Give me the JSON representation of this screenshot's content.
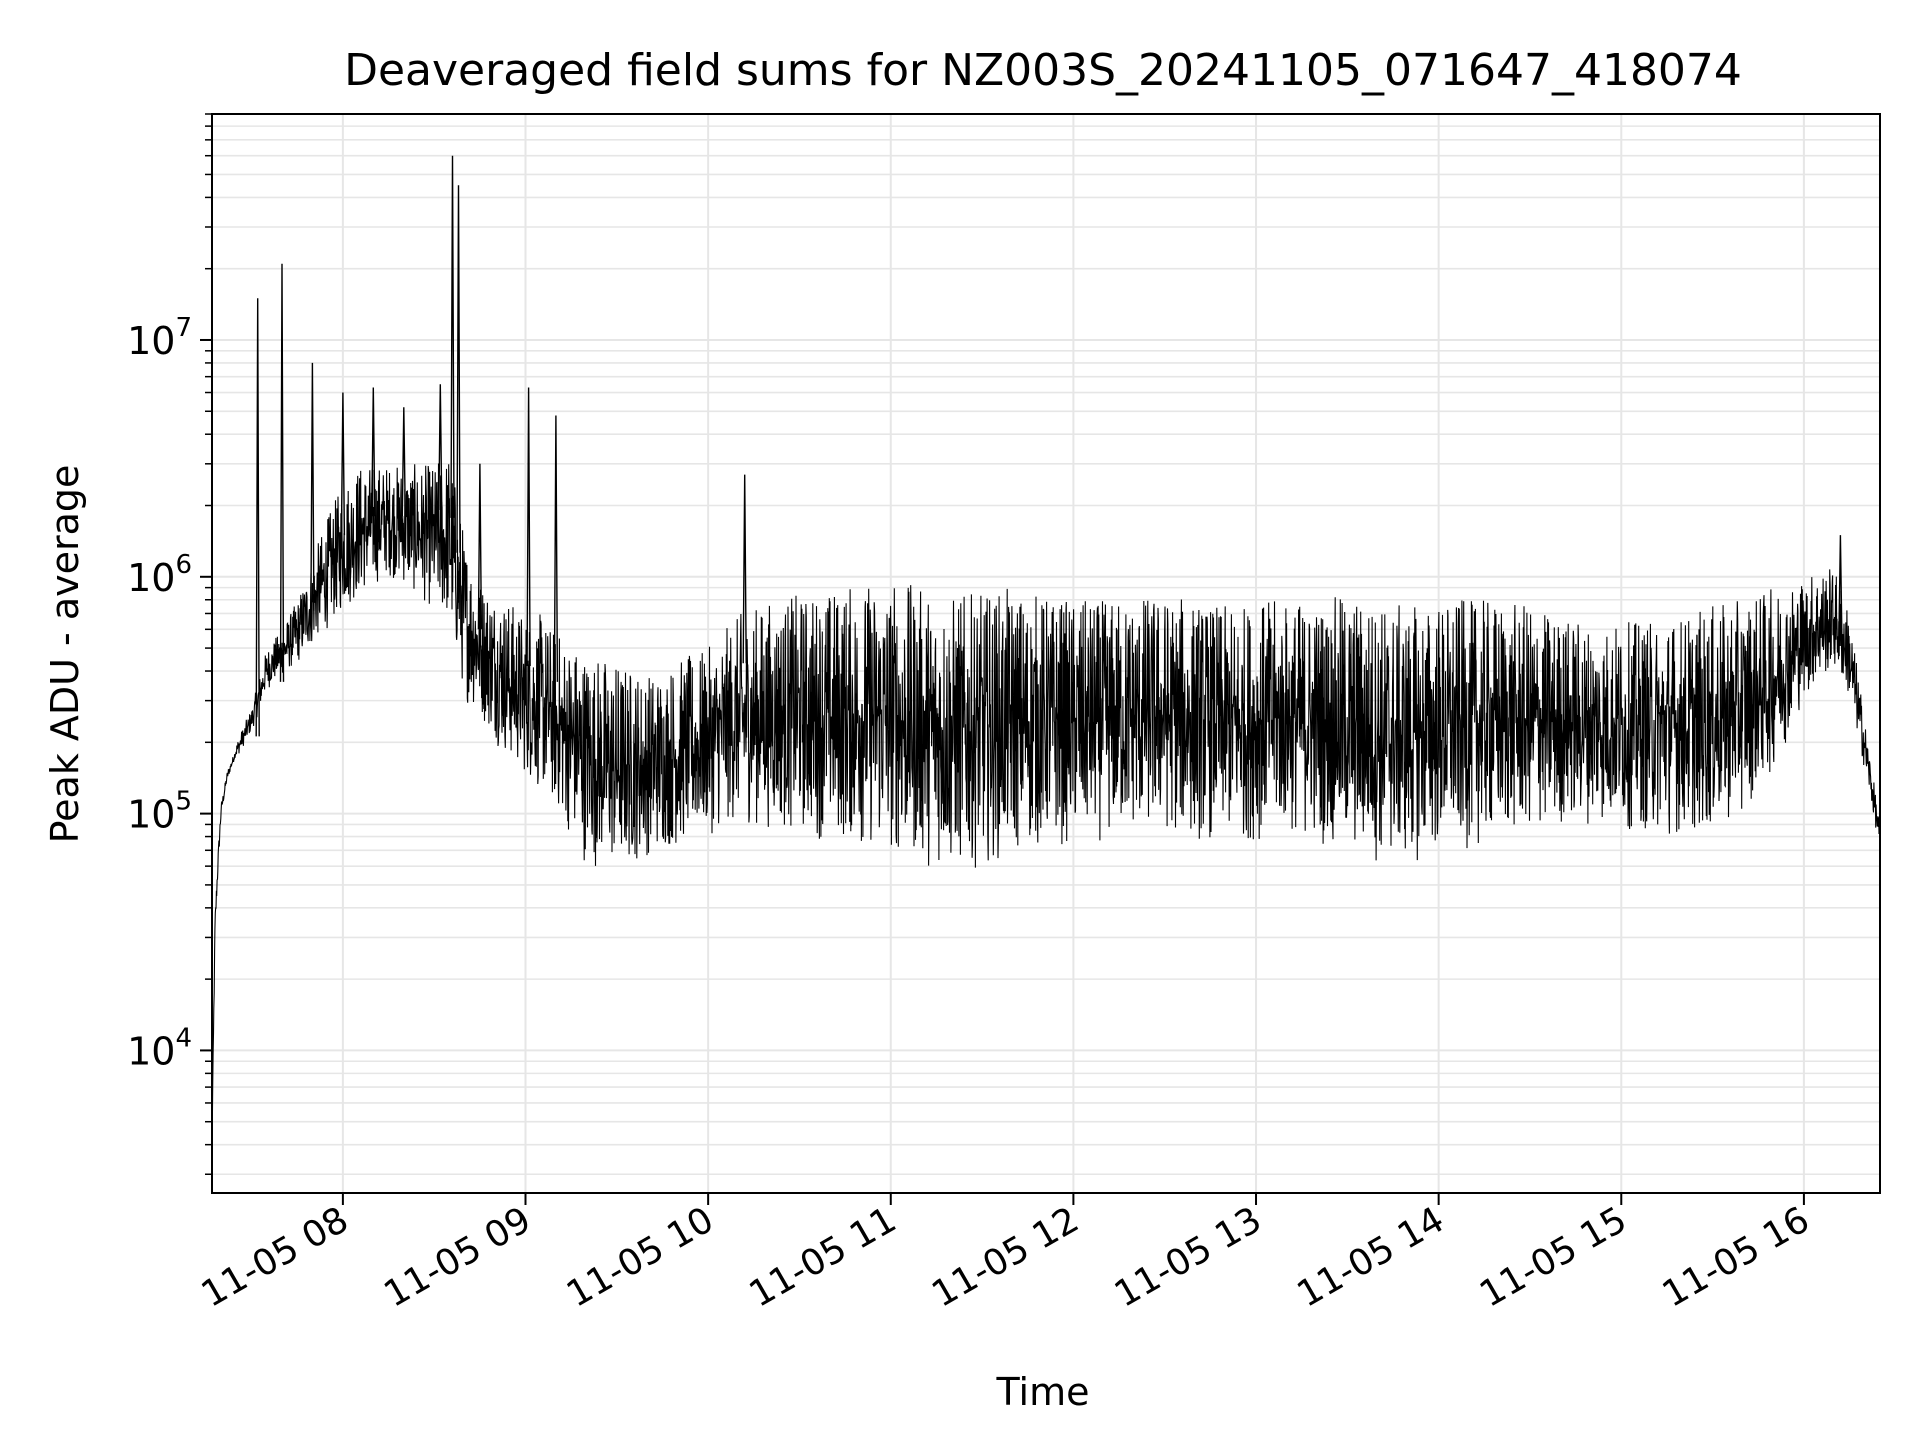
{
  "chart_data": {
    "type": "line",
    "title": "Deaveraged field sums for NZ003S_20241105_071647_418074",
    "xlabel": "Time",
    "ylabel": "Peak ADU - average",
    "yscale": "log",
    "ylim": [
      2500,
      90000000
    ],
    "xlim": [
      "11-05 07:17",
      "11-05 16:25"
    ],
    "grid": true,
    "legend": "none",
    "line_color": "#000000",
    "grid_color": "#e6e6e6",
    "x_ticks": [
      {
        "label": "11-05 08",
        "minutes": 60
      },
      {
        "label": "11-05 09",
        "minutes": 120
      },
      {
        "label": "11-05 10",
        "minutes": 180
      },
      {
        "label": "11-05 11",
        "minutes": 240
      },
      {
        "label": "11-05 12",
        "minutes": 300
      },
      {
        "label": "11-05 13",
        "minutes": 360
      },
      {
        "label": "11-05 14",
        "minutes": 420
      },
      {
        "label": "11-05 15",
        "minutes": 480
      },
      {
        "label": "11-05 16",
        "minutes": 540
      }
    ],
    "y_ticks": [
      {
        "base": "10",
        "exp": "4",
        "value": 10000
      },
      {
        "base": "10",
        "exp": "5",
        "value": 100000
      },
      {
        "base": "10",
        "exp": "6",
        "value": 1000000
      },
      {
        "base": "10",
        "exp": "7",
        "value": 10000000
      }
    ],
    "series": [
      {
        "x": [
          "07:17",
          "07:18",
          "07:19",
          "07:20",
          "07:22",
          "07:25",
          "07:30",
          "07:35",
          "07:40",
          "07:45",
          "07:50",
          "07:55",
          "08:00",
          "08:05",
          "08:10",
          "08:15",
          "08:20",
          "08:25",
          "08:30",
          "08:35",
          "08:40",
          "08:45",
          "08:50",
          "08:55",
          "09:00",
          "09:05",
          "09:10",
          "09:20",
          "09:30",
          "09:40",
          "09:50",
          "10:00",
          "10:10",
          "10:20",
          "10:30",
          "10:40",
          "10:50",
          "11:00",
          "11:10",
          "11:20",
          "11:30",
          "11:40",
          "11:50",
          "12:00",
          "12:10",
          "12:20",
          "12:30",
          "12:40",
          "12:50",
          "13:00",
          "13:10",
          "13:20",
          "13:30",
          "13:40",
          "13:50",
          "14:00",
          "14:10",
          "14:20",
          "14:30",
          "14:40",
          "14:50",
          "15:00",
          "15:10",
          "15:20",
          "15:30",
          "15:40",
          "15:50",
          "16:00",
          "16:05",
          "16:10",
          "16:15",
          "16:20",
          "16:25"
        ],
        "low": [
          3500,
          25000,
          50000,
          90000,
          130000,
          170000,
          220000,
          330000,
          380000,
          420000,
          500000,
          600000,
          700000,
          800000,
          900000,
          1000000,
          900000,
          800000,
          700000,
          600000,
          300000,
          250000,
          200000,
          160000,
          140000,
          120000,
          100000,
          60000,
          55000,
          65000,
          70000,
          80000,
          90000,
          85000,
          80000,
          75000,
          70000,
          65000,
          60000,
          55000,
          60000,
          65000,
          70000,
          72000,
          75000,
          80000,
          80000,
          75000,
          75000,
          75000,
          80000,
          75000,
          65000,
          60000,
          60000,
          65000,
          70000,
          75000,
          80000,
          85000,
          90000,
          85000,
          80000,
          80000,
          80000,
          100000,
          150000,
          300000,
          350000,
          400000,
          300000,
          150000,
          70000
        ],
        "high": [
          5000,
          45000,
          80000,
          120000,
          160000,
          200000,
          280000,
          500000,
          600000,
          800000,
          1200000,
          1800000,
          2500000,
          3000000,
          3000000,
          3000000,
          3000000,
          3000000,
          3000000,
          3500000,
          1500000,
          1000000,
          900000,
          800000,
          700000,
          700000,
          600000,
          500000,
          450000,
          400000,
          450000,
          500000,
          700000,
          800000,
          850000,
          900000,
          950000,
          1000000,
          900000,
          850000,
          850000,
          900000,
          850000,
          800000,
          800000,
          850000,
          850000,
          800000,
          750000,
          800000,
          800000,
          800000,
          850000,
          800000,
          750000,
          800000,
          800000,
          800000,
          750000,
          700000,
          650000,
          650000,
          650000,
          700000,
          750000,
          800000,
          900000,
          1000000,
          1100000,
          1100000,
          700000,
          250000,
          90000
        ],
        "spikes": [
          {
            "t": "07:32",
            "v": 15000000
          },
          {
            "t": "07:40",
            "v": 21000000
          },
          {
            "t": "07:50",
            "v": 8000000
          },
          {
            "t": "08:00",
            "v": 6000000
          },
          {
            "t": "08:10",
            "v": 6300000
          },
          {
            "t": "08:20",
            "v": 5200000
          },
          {
            "t": "08:32",
            "v": 6500000
          },
          {
            "t": "08:36",
            "v": 60000000
          },
          {
            "t": "08:38",
            "v": 45000000
          },
          {
            "t": "08:45",
            "v": 3000000
          },
          {
            "t": "09:01",
            "v": 6300000
          },
          {
            "t": "09:10",
            "v": 4800000
          },
          {
            "t": "10:12",
            "v": 2700000
          },
          {
            "t": "16:12",
            "v": 1500000
          }
        ]
      }
    ]
  }
}
